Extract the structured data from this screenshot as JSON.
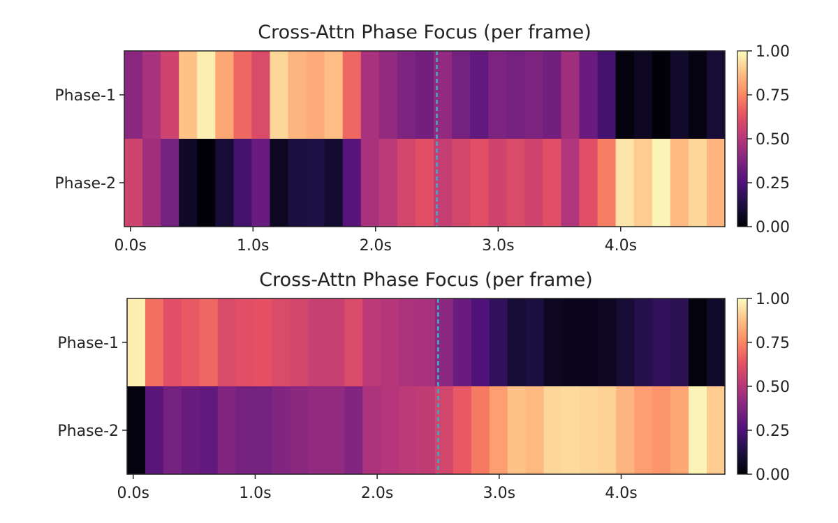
{
  "chart_data": [
    {
      "type": "heatmap",
      "title": "Cross-Attn Phase Focus (per frame)",
      "rows": [
        "Phase-1",
        "Phase-2"
      ],
      "x_ticks": [
        "0.0s",
        "1.0s",
        "2.0s",
        "3.0s",
        "4.0s"
      ],
      "x_tick_values": [
        0.0,
        1.0,
        2.0,
        3.0,
        4.0
      ],
      "x_range": [
        -0.05,
        4.85
      ],
      "frame_step": 0.1531,
      "marker_time": 2.5,
      "marker_color": "#4a9fbf",
      "colormap": "magma",
      "colorbar_range": [
        0.0,
        1.0
      ],
      "colorbar_ticks": [
        "1.00",
        "0.75",
        "0.50",
        "0.25",
        "0.00"
      ],
      "colorbar_tick_values": [
        1.0,
        0.75,
        0.5,
        0.25,
        0.0
      ],
      "values": [
        [
          0.4,
          0.47,
          0.57,
          0.88,
          0.97,
          0.82,
          0.68,
          0.6,
          0.92,
          0.85,
          0.83,
          0.87,
          0.68,
          0.47,
          0.42,
          0.37,
          0.34,
          0.42,
          0.35,
          0.3,
          0.37,
          0.35,
          0.37,
          0.34,
          0.45,
          0.32,
          0.22,
          0.02,
          0.06,
          0.01,
          0.08,
          0.03,
          0.1
        ],
        [
          0.57,
          0.45,
          0.35,
          0.07,
          0.01,
          0.1,
          0.22,
          0.32,
          0.06,
          0.12,
          0.13,
          0.09,
          0.27,
          0.47,
          0.52,
          0.58,
          0.62,
          0.54,
          0.58,
          0.62,
          0.57,
          0.6,
          0.57,
          0.62,
          0.49,
          0.62,
          0.73,
          0.95,
          0.9,
          0.98,
          0.86,
          0.92,
          0.85
        ]
      ]
    },
    {
      "type": "heatmap",
      "title": "Cross-Attn Phase Focus (per frame)",
      "rows": [
        "Phase-1",
        "Phase-2"
      ],
      "x_ticks": [
        "0.0s",
        "1.0s",
        "2.0s",
        "3.0s",
        "4.0s"
      ],
      "x_tick_values": [
        0.0,
        1.0,
        2.0,
        3.0,
        4.0
      ],
      "x_range": [
        -0.05,
        4.85
      ],
      "frame_step": 0.1531,
      "marker_time": 2.5,
      "marker_color": "#4a9fbf",
      "colormap": "magma",
      "colorbar_range": [
        0.0,
        1.0
      ],
      "colorbar_ticks": [
        "1.00",
        "0.75",
        "0.50",
        "0.25",
        "0.00"
      ],
      "colorbar_tick_values": [
        1.0,
        0.75,
        0.5,
        0.25,
        0.0
      ],
      "values": [
        [
          0.97,
          0.7,
          0.62,
          0.65,
          0.68,
          0.6,
          0.62,
          0.63,
          0.6,
          0.58,
          0.55,
          0.55,
          0.6,
          0.52,
          0.5,
          0.48,
          0.47,
          0.4,
          0.32,
          0.25,
          0.18,
          0.1,
          0.12,
          0.06,
          0.05,
          0.05,
          0.06,
          0.1,
          0.15,
          0.18,
          0.16,
          0.02,
          0.08
        ],
        [
          0.02,
          0.28,
          0.35,
          0.32,
          0.3,
          0.38,
          0.35,
          0.35,
          0.38,
          0.4,
          0.42,
          0.42,
          0.38,
          0.48,
          0.5,
          0.52,
          0.53,
          0.58,
          0.65,
          0.72,
          0.8,
          0.88,
          0.86,
          0.92,
          0.93,
          0.92,
          0.91,
          0.85,
          0.8,
          0.78,
          0.82,
          0.98,
          0.9
        ]
      ]
    }
  ]
}
